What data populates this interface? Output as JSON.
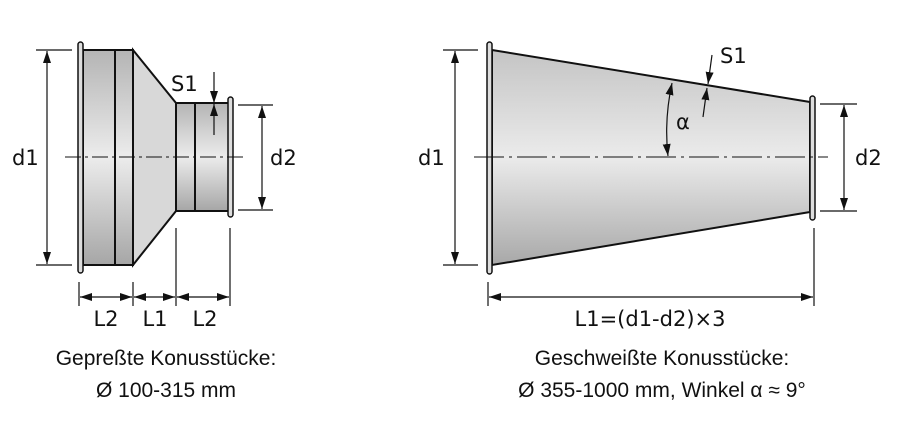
{
  "left": {
    "labels": {
      "d1": "d1",
      "d2": "d2",
      "s1": "S1",
      "l2a": "L2",
      "l1": "L1",
      "l2b": "L2"
    },
    "caption_line1": "Gepreßte Konusstücke:",
    "caption_line2": "Ø 100-315 mm"
  },
  "right": {
    "labels": {
      "d1": "d1",
      "d2": "d2",
      "s1": "S1",
      "alpha": "α",
      "l1": "L1=(d1-d2)×3"
    },
    "caption_line1": "Geschweißte Konusstücke:",
    "caption_line2": "Ø 355-1000 mm, Winkel α ≈ 9°"
  },
  "colors": {
    "metal_light": "#eeeeee",
    "metal_dark": "#a8a8a8",
    "line": "#111111"
  }
}
